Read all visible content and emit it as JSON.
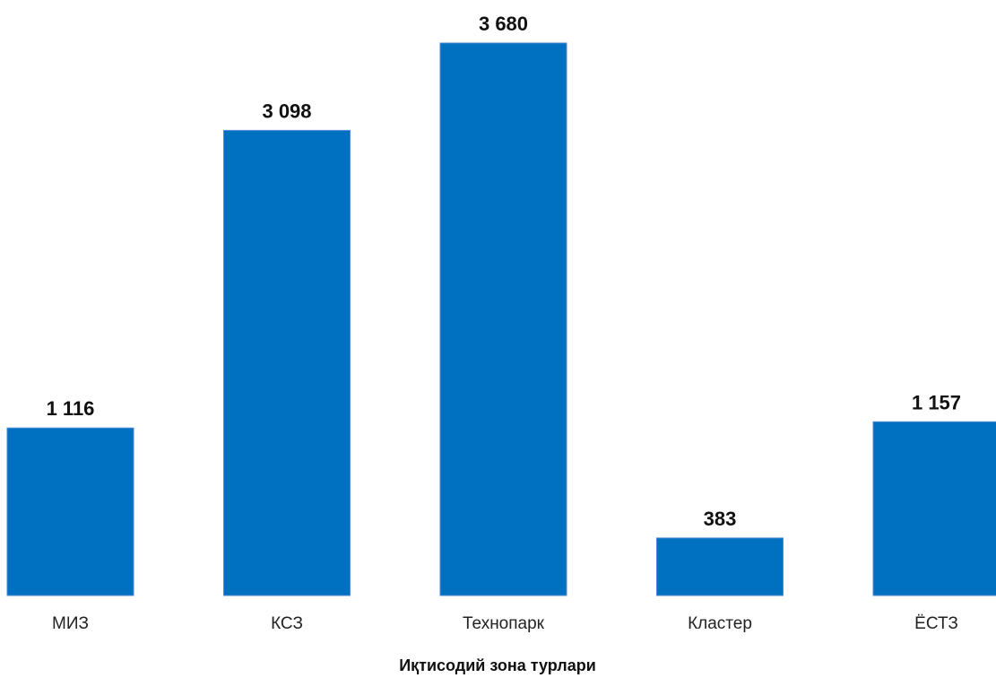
{
  "chart_data": {
    "type": "bar",
    "title": "",
    "xlabel": "Иқтисодий зона турлари",
    "ylabel": "",
    "categories": [
      "МИЗ",
      "КСЗ",
      "Технопарк",
      "Кластер",
      "ЁСТЗ"
    ],
    "values": [
      1116,
      3098,
      3680,
      383,
      1157
    ],
    "value_labels": [
      "1 116",
      "3 098",
      "3 680",
      "383",
      "1 157"
    ],
    "ylim": [
      0,
      3680
    ],
    "grid": false,
    "legend": "none",
    "colors": {
      "bar": "#0070c0",
      "bar_edge": "#4f8ad6"
    }
  }
}
